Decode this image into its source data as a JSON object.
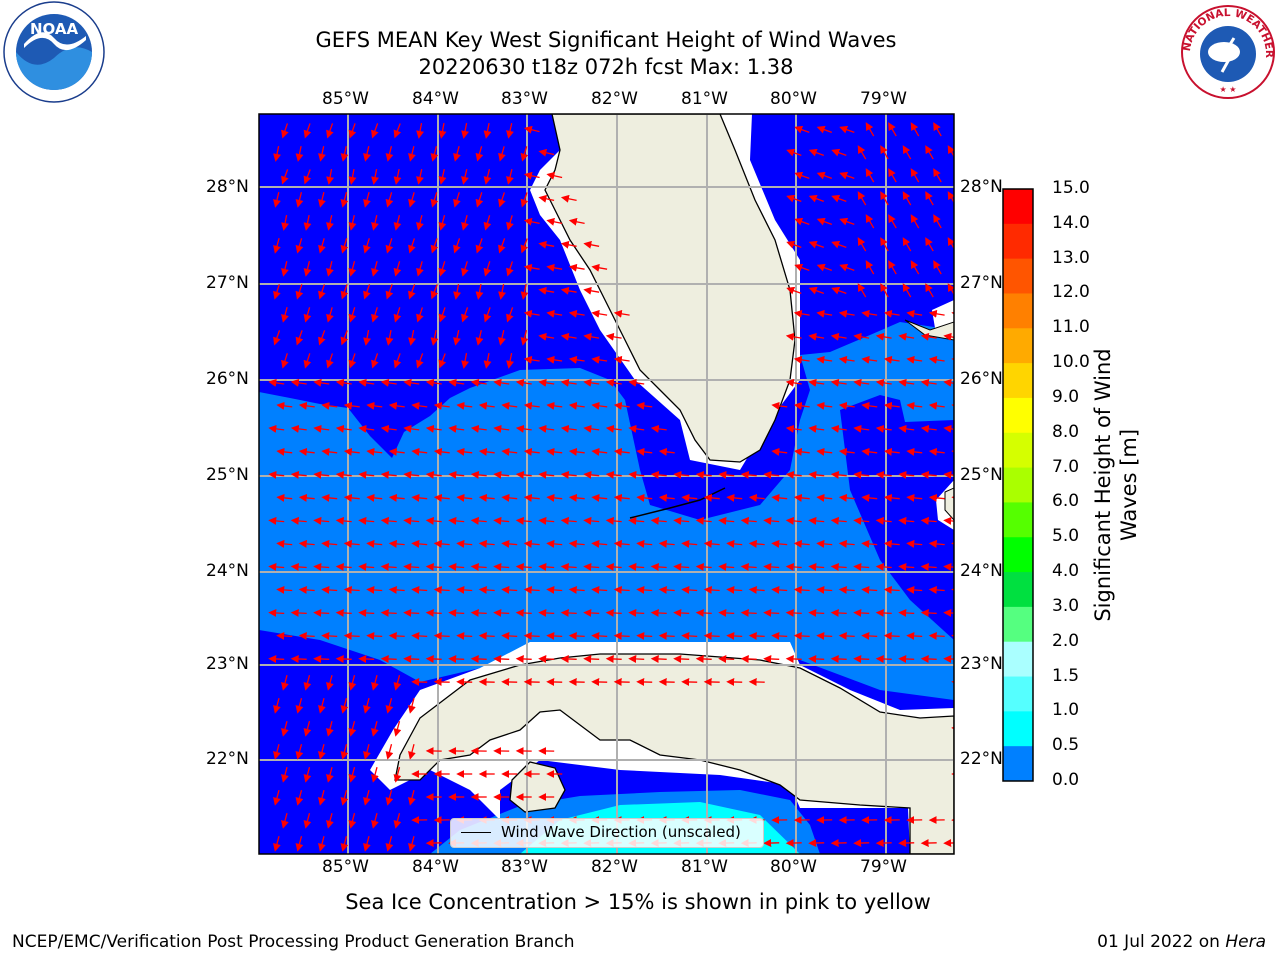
{
  "header": {
    "title_line1": "GEFS MEAN Key West Significant Height of Wind Waves",
    "title_line2": "20220630 t18z 072h fcst   Max: 1.38"
  },
  "map": {
    "lon_labels": [
      "85°W",
      "84°W",
      "83°W",
      "82°W",
      "81°W",
      "80°W",
      "79°W"
    ],
    "lat_labels": [
      "28°N",
      "27°N",
      "26°N",
      "25°N",
      "24°N",
      "23°N",
      "22°N"
    ],
    "legend_label": "Wind Wave Direction (unscaled)",
    "extent": {
      "lon": [
        -86.0,
        -78.2
      ],
      "lat": [
        21.1,
        28.8
      ]
    }
  },
  "colorbar": {
    "title_line1": "Significant Height of Wind",
    "title_line2": "Waves [m]",
    "ticks": [
      "15.0",
      "14.0",
      "13.0",
      "12.0",
      "11.0",
      "10.0",
      "9.0",
      "8.0",
      "7.0",
      "6.0",
      "5.0",
      "4.0",
      "3.0",
      "2.0",
      "1.5",
      "1.0",
      "0.5",
      "0.0"
    ],
    "colors": [
      "#ff0000",
      "#ff2a00",
      "#ff5500",
      "#ff8000",
      "#ffaa00",
      "#ffd500",
      "#ffff00",
      "#d5ff00",
      "#aaff00",
      "#55ff00",
      "#00ff00",
      "#00e040",
      "#55ff80",
      "#aaffff",
      "#55ffff",
      "#00ffff",
      "#0080ff",
      "#0000ff"
    ]
  },
  "colors": {
    "deep_blue": "#0000ff",
    "mid_blue": "#0080ff",
    "cyan": "#00ffff",
    "land": "#eeeee0",
    "arrow": "#ff0000"
  },
  "footer": {
    "subtitle": "Sea Ice Concentration > 15% is shown in pink to yellow",
    "left": "NCEP/EMC/Verification Post Processing Product Generation Branch",
    "right_prefix": "01 Jul 2022 on ",
    "right_host": "Hera"
  },
  "logos": {
    "noaa_text": "NOAA",
    "nws_text": "NATIONAL WEATHER SERVICE"
  }
}
